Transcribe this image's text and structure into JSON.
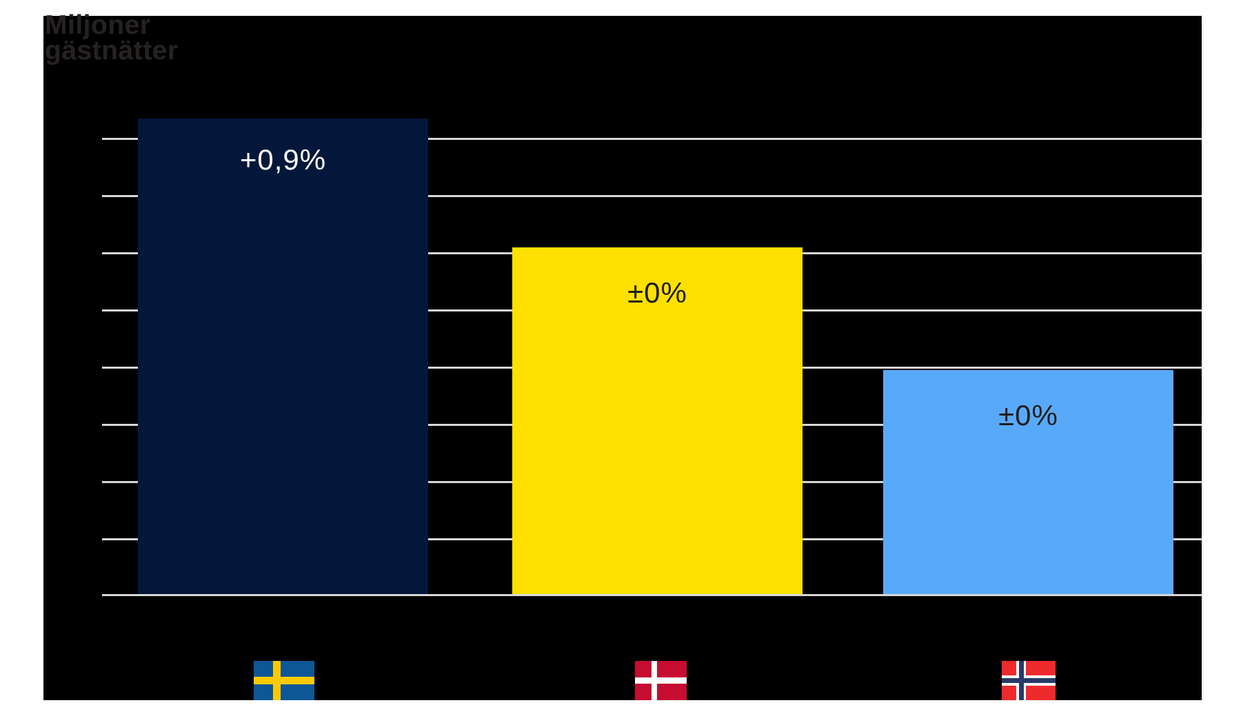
{
  "page": {
    "background_color": "#ffffff",
    "chart_background_color": "#000000"
  },
  "y_axis": {
    "label_line1": "Miljoner",
    "label_line2": "gästnätter",
    "label_color": "#262223",
    "gridline_color": "#d7d7d7",
    "numeric_tick_labels_visible": false
  },
  "chart_data": {
    "type": "bar",
    "title": "",
    "ylabel": "Miljoner gästnätter",
    "xlabel": "",
    "categories": [
      "Sverige",
      "Danmark",
      "Norge"
    ],
    "series": [
      {
        "name": "Gästnätter (miljoner)",
        "values_in_gridline_units": [
          8.3,
          6.1,
          3.9
        ]
      }
    ],
    "annotations": [
      "+0,9%",
      "±0%",
      "±0%"
    ],
    "gridlines": {
      "count": 8,
      "spacing_units": 1,
      "numeric_labels_visible": false,
      "grid_on": true
    },
    "ylim_gridline_units": [
      0,
      10
    ],
    "legend_position": "none",
    "category_labels_rendered_as": "flags"
  },
  "bars": [
    {
      "country": "Sverige",
      "label": "+0,9%",
      "color": "#03173a",
      "label_color": "#ffffff"
    },
    {
      "country": "Danmark",
      "label": "±0%",
      "color": "#ffe000",
      "label_color": "#1f1e1c"
    },
    {
      "country": "Norge",
      "label": "±0%",
      "color": "#59a9fb",
      "label_color": "#1f1e1c"
    }
  ],
  "flags": {
    "sweden": {
      "blue": "#0e5796",
      "yellow": "#fdca00"
    },
    "denmark": {
      "red": "#c60c30",
      "white": "#ffffff"
    },
    "norway": {
      "red": "#ee2b2c",
      "white": "#ffffff",
      "navy": "#283a68"
    }
  }
}
